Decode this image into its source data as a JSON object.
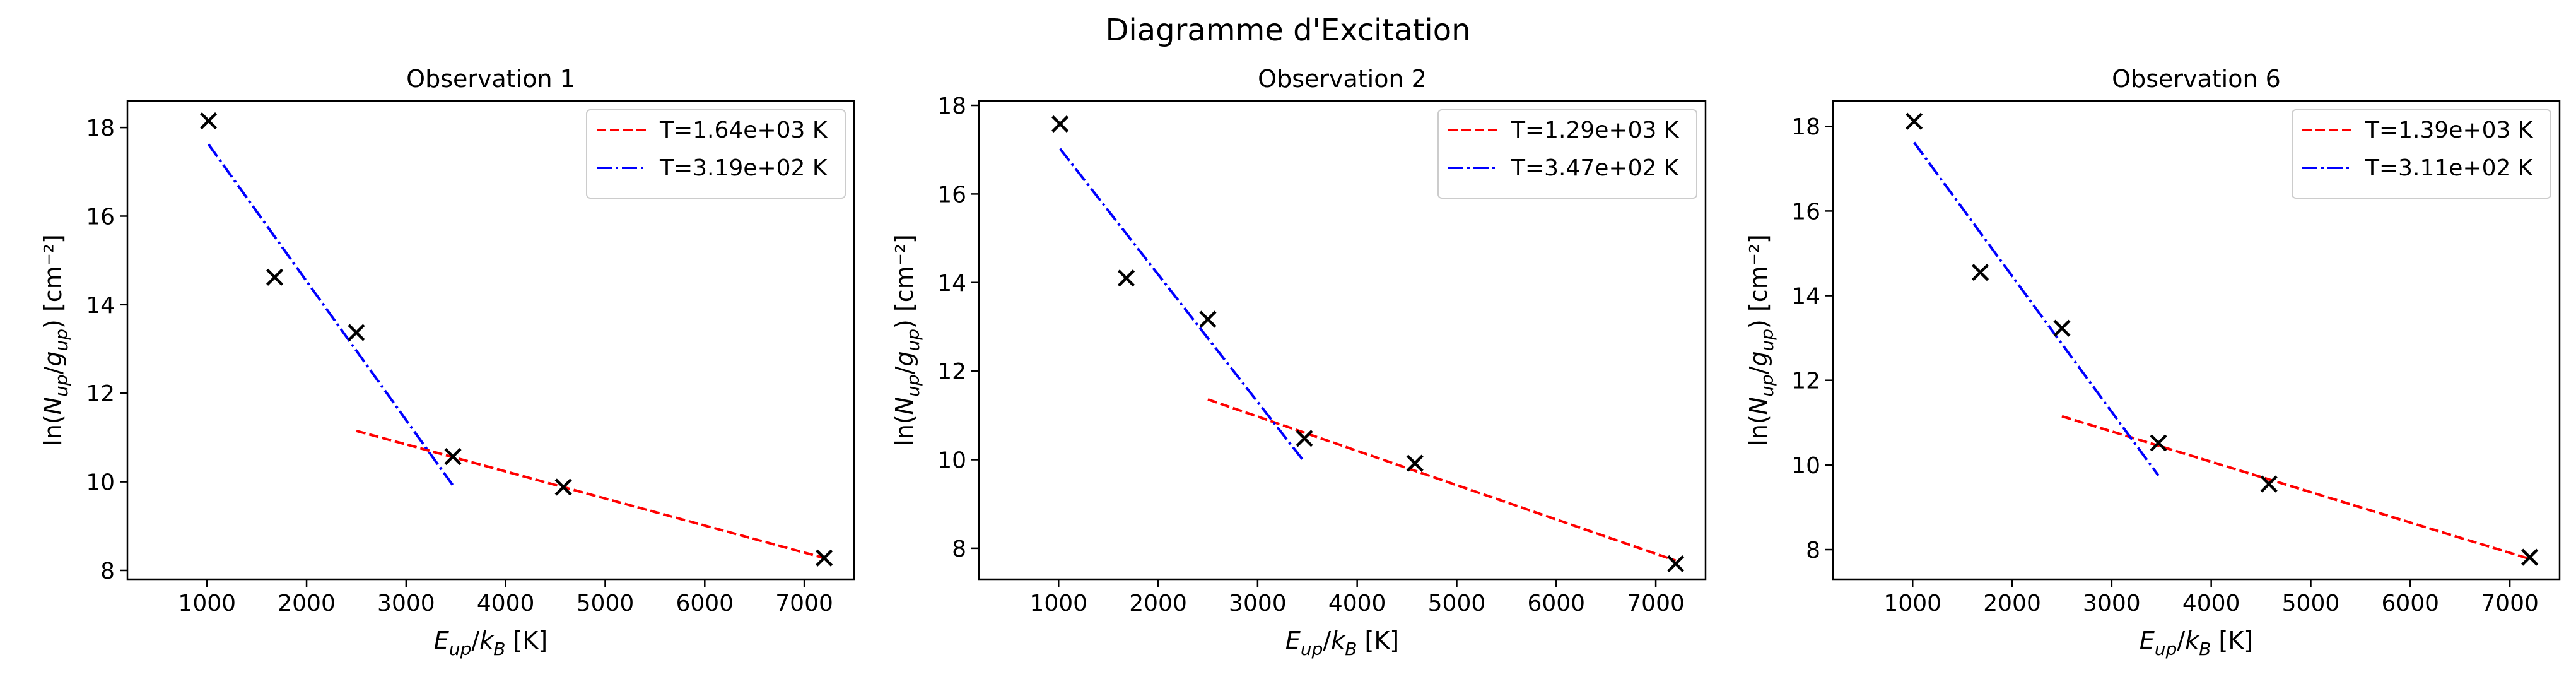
{
  "figure": {
    "suptitle": "Diagramme d'Excitation"
  },
  "chart_data": [
    {
      "type": "scatter",
      "title": "Observation 1",
      "xlabel": "E_up/k_B [K]",
      "ylabel": "ln(N_up/g_up) [cm⁻²]",
      "xlim": [
        200,
        7500
      ],
      "ylim": [
        7.8,
        18.6
      ],
      "xticks": [
        1000,
        2000,
        3000,
        4000,
        5000,
        6000,
        7000
      ],
      "yticks": [
        8,
        10,
        12,
        14,
        16,
        18
      ],
      "points": {
        "x": [
          1015,
          1680,
          2500,
          3470,
          4580,
          7200
        ],
        "y": [
          18.15,
          14.62,
          13.37,
          10.57,
          9.88,
          8.28
        ]
      },
      "fits": [
        {
          "name": "T=1.64e+03 K",
          "x": [
            2500,
            7200
          ],
          "y": [
            11.15,
            8.28
          ],
          "color": "#ff0000",
          "style": "dashed"
        },
        {
          "name": "T=3.19e+02 K",
          "x": [
            1015,
            3470
          ],
          "y": [
            17.62,
            9.92
          ],
          "color": "#0000ff",
          "style": "dashdot"
        }
      ],
      "legend": "top-right",
      "grid": false
    },
    {
      "type": "scatter",
      "title": "Observation 2",
      "xlabel": "E_up/k_B [K]",
      "ylabel": "ln(N_up/g_up) [cm⁻²]",
      "xlim": [
        200,
        7500
      ],
      "ylim": [
        7.3,
        18.1
      ],
      "xticks": [
        1000,
        2000,
        3000,
        4000,
        5000,
        6000,
        7000
      ],
      "yticks": [
        8,
        10,
        12,
        14,
        16,
        18
      ],
      "points": {
        "x": [
          1015,
          1680,
          2500,
          3470,
          4580,
          7200
        ],
        "y": [
          17.58,
          14.1,
          13.17,
          10.48,
          9.92,
          7.65
        ]
      },
      "fits": [
        {
          "name": "T=1.29e+03 K",
          "x": [
            2500,
            7200
          ],
          "y": [
            11.36,
            7.72
          ],
          "color": "#ff0000",
          "style": "dashed"
        },
        {
          "name": "T=3.47e+02 K",
          "x": [
            1015,
            3470
          ],
          "y": [
            17.02,
            9.95
          ],
          "color": "#0000ff",
          "style": "dashdot"
        }
      ],
      "legend": "top-right",
      "grid": false
    },
    {
      "type": "scatter",
      "title": "Observation 6",
      "xlabel": "E_up/k_B [K]",
      "ylabel": "ln(N_up/g_up) [cm⁻²]",
      "xlim": [
        200,
        7500
      ],
      "ylim": [
        7.3,
        18.6
      ],
      "xticks": [
        1000,
        2000,
        3000,
        4000,
        5000,
        6000,
        7000
      ],
      "yticks": [
        8,
        10,
        12,
        14,
        16,
        18
      ],
      "points": {
        "x": [
          1015,
          1680,
          2500,
          3470,
          4580,
          7200
        ],
        "y": [
          18.12,
          14.55,
          13.23,
          10.52,
          9.55,
          7.82
        ]
      },
      "fits": [
        {
          "name": "T=1.39e+03 K",
          "x": [
            2500,
            7200
          ],
          "y": [
            11.15,
            7.78
          ],
          "color": "#ff0000",
          "style": "dashed"
        },
        {
          "name": "T=3.11e+02 K",
          "x": [
            1015,
            3470
          ],
          "y": [
            17.62,
            9.75
          ],
          "color": "#0000ff",
          "style": "dashdot"
        }
      ],
      "legend": "top-right",
      "grid": false
    }
  ]
}
